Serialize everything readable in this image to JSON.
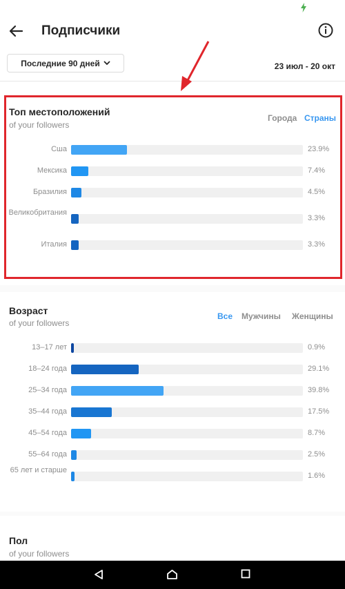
{
  "header": {
    "title": "Подписчики"
  },
  "range": {
    "selected": "Последние 90 дней",
    "dates": "23 июл - 20 окт"
  },
  "colors": {
    "accent": "#3897f0",
    "bar_light": "#42a5f5",
    "bar_mid": "#1e88e5",
    "bar_dark": "#0d47a1",
    "highlight": "#e0262c"
  },
  "locations": {
    "title": "Топ местоположений",
    "subtitle": "of your followers",
    "filters": [
      {
        "label": "Города",
        "active": false
      },
      {
        "label": "Страны",
        "active": true
      }
    ],
    "rows": [
      {
        "label": "Сша",
        "value": 23.9,
        "pct": "23.9%",
        "color": "#42a5f5"
      },
      {
        "label": "Мексика",
        "value": 7.4,
        "pct": "7.4%",
        "color": "#2196f3"
      },
      {
        "label": "Бразилия",
        "value": 4.5,
        "pct": "4.5%",
        "color": "#1e88e5"
      },
      {
        "label": "Великобритания",
        "value": 3.3,
        "pct": "3.3%",
        "color": "#1565c0"
      },
      {
        "label": "Италия",
        "value": 3.3,
        "pct": "3.3%",
        "color": "#1565c0"
      }
    ]
  },
  "age": {
    "title": "Возраст",
    "subtitle": "of your followers",
    "filters": [
      {
        "label": "Все",
        "active": true
      },
      {
        "label": "Мужчины",
        "active": false
      },
      {
        "label": "Женщины",
        "active": false
      }
    ],
    "rows": [
      {
        "label": "13–17 лет",
        "value": 0.9,
        "pct": "0.9%",
        "color": "#0d47a1"
      },
      {
        "label": "18–24 года",
        "value": 29.1,
        "pct": "29.1%",
        "color": "#1565c0"
      },
      {
        "label": "25–34 года",
        "value": 39.8,
        "pct": "39.8%",
        "color": "#42a5f5"
      },
      {
        "label": "35–44 года",
        "value": 17.5,
        "pct": "17.5%",
        "color": "#1976d2"
      },
      {
        "label": "45–54 года",
        "value": 8.7,
        "pct": "8.7%",
        "color": "#2196f3"
      },
      {
        "label": "55–64 года",
        "value": 2.5,
        "pct": "2.5%",
        "color": "#1e88e5"
      },
      {
        "label": "65 лет и старше",
        "value": 1.6,
        "pct": "1.6%",
        "color": "#1e88e5"
      }
    ]
  },
  "gender": {
    "title": "Пол",
    "subtitle": "of your followers"
  },
  "nav": {
    "icons": [
      "back-icon",
      "home-icon",
      "recents-icon"
    ]
  }
}
